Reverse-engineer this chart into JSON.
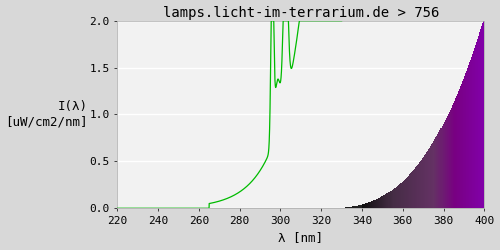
{
  "title": "lamps.licht-im-terrarium.de > 756",
  "xlabel": "λ [nm]",
  "ylabel": "I(λ)\n[uW/cm2/nm]",
  "xlim": [
    220,
    400
  ],
  "ylim": [
    0.0,
    2.0
  ],
  "yticks": [
    0.0,
    0.5,
    1.0,
    1.5,
    2.0
  ],
  "xticks": [
    220,
    240,
    260,
    280,
    300,
    320,
    340,
    360,
    380,
    400
  ],
  "fig_bg_color": "#d8d8d8",
  "plot_bg_color": "#f2f2f2",
  "grid_color": "#ffffff",
  "title_fontsize": 10,
  "axis_fontsize": 9,
  "tick_fontsize": 8,
  "green_color": "#00bb00",
  "spectrum_exponent": 2.8,
  "spectrum_scale": 2.05
}
